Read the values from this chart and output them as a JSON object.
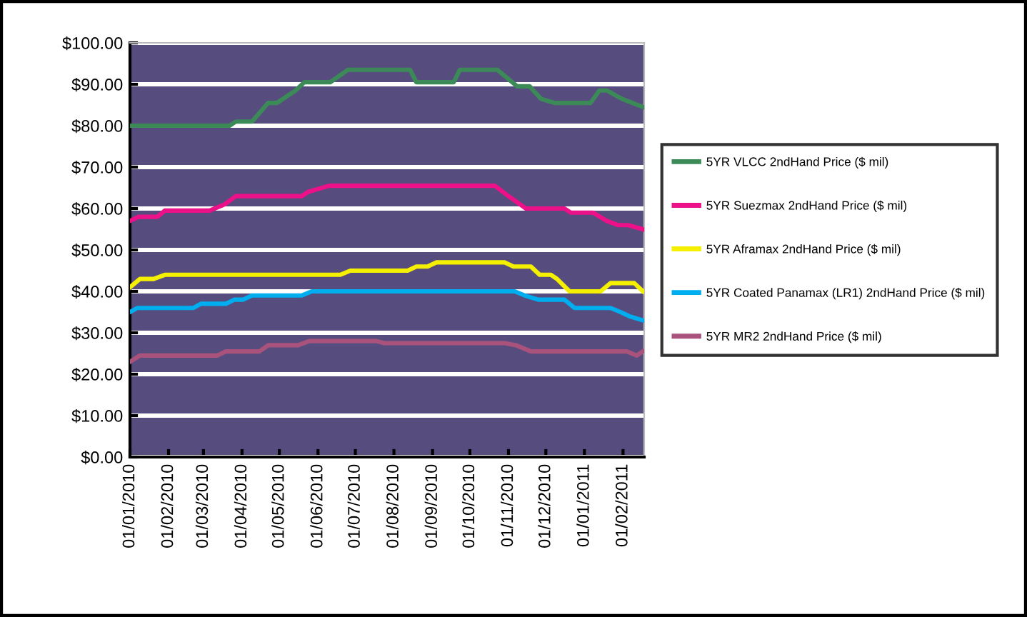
{
  "chart_data": {
    "type": "line",
    "xlim": [
      "2010-01-01",
      "2011-02-18"
    ],
    "xticks": [
      {
        "value": "2010-01-01",
        "label": "01/01/2010"
      },
      {
        "value": "2010-02-01",
        "label": "01/02/2010"
      },
      {
        "value": "2010-03-01",
        "label": "01/03/2010"
      },
      {
        "value": "2010-04-01",
        "label": "01/04/2010"
      },
      {
        "value": "2010-05-01",
        "label": "01/05/2010"
      },
      {
        "value": "2010-06-01",
        "label": "01/06/2010"
      },
      {
        "value": "2010-07-01",
        "label": "01/07/2010"
      },
      {
        "value": "2010-08-01",
        "label": "01/08/2010"
      },
      {
        "value": "2010-09-01",
        "label": "01/09/2010"
      },
      {
        "value": "2010-10-01",
        "label": "01/10/2010"
      },
      {
        "value": "2010-11-01",
        "label": "01/11/2010"
      },
      {
        "value": "2010-12-01",
        "label": "01/12/2010"
      },
      {
        "value": "2011-01-01",
        "label": "01/01/2011"
      },
      {
        "value": "2011-02-01",
        "label": "01/02/2011"
      }
    ],
    "ylim": [
      0,
      100
    ],
    "yticks": [
      {
        "value": 0,
        "label": "$0.00"
      },
      {
        "value": 10,
        "label": "$10.00"
      },
      {
        "value": 20,
        "label": "$20.00"
      },
      {
        "value": 30,
        "label": "$30.00"
      },
      {
        "value": 40,
        "label": "$40.00"
      },
      {
        "value": 50,
        "label": "$50.00"
      },
      {
        "value": 60,
        "label": "$60.00"
      },
      {
        "value": 70,
        "label": "$70.00"
      },
      {
        "value": 80,
        "label": "$80.00"
      },
      {
        "value": 90,
        "label": "$90.00"
      },
      {
        "value": 100,
        "label": "$100.00"
      }
    ],
    "grid": "y",
    "legend": "right",
    "marker": "none",
    "line_style": "solid",
    "series": [
      {
        "name": "5YR VLCC 2ndHand Price ($ mil)",
        "color": "#3b8a58",
        "x": [
          "2010-01-01",
          "2010-03-22",
          "2010-03-27",
          "2010-04-09",
          "2010-04-22",
          "2010-04-29",
          "2010-05-14",
          "2010-05-21",
          "2010-06-11",
          "2010-06-25",
          "2010-08-14",
          "2010-08-19",
          "2010-09-18",
          "2010-09-23",
          "2010-10-23",
          "2010-11-08",
          "2010-11-18",
          "2010-11-27",
          "2010-12-08",
          "2011-01-06",
          "2011-01-13",
          "2011-01-19",
          "2011-01-31",
          "2011-02-17"
        ],
        "values": [
          80,
          80,
          81,
          81,
          85.5,
          85.5,
          88.5,
          90.5,
          90.5,
          93.5,
          93.5,
          90.5,
          90.5,
          93.5,
          93.5,
          89.5,
          89.5,
          86.5,
          85.5,
          85.5,
          88.5,
          88.5,
          86.5,
          84.5
        ]
      },
      {
        "name": "5YR Suezmax 2ndHand Price ($ mil)",
        "color": "#ec1188",
        "x": [
          "2010-01-01",
          "2010-01-08",
          "2010-01-23",
          "2010-01-29",
          "2010-03-06",
          "2010-03-18",
          "2010-03-27",
          "2010-05-19",
          "2010-05-24",
          "2010-06-10",
          "2010-10-21",
          "2010-11-01",
          "2010-11-15",
          "2010-12-16",
          "2010-12-21",
          "2011-01-08",
          "2011-01-19",
          "2011-01-28",
          "2011-02-05",
          "2011-02-17"
        ],
        "values": [
          57,
          58,
          58,
          59.5,
          59.5,
          61,
          63,
          63,
          64,
          65.5,
          65.5,
          63,
          60,
          60,
          59,
          59,
          57,
          56,
          56,
          55
        ]
      },
      {
        "name": "5YR Aframax 2ndHand Price ($ mil)",
        "color": "#f5f000",
        "x": [
          "2010-01-01",
          "2010-01-09",
          "2010-01-20",
          "2010-01-29",
          "2010-06-19",
          "2010-06-27",
          "2010-08-12",
          "2010-08-19",
          "2010-08-28",
          "2010-09-04",
          "2010-10-29",
          "2010-11-05",
          "2010-11-19",
          "2010-11-26",
          "2010-12-05",
          "2010-12-10",
          "2010-12-20",
          "2011-01-14",
          "2011-01-22",
          "2011-02-10",
          "2011-02-17"
        ],
        "values": [
          41,
          43,
          43,
          44,
          44,
          45,
          45,
          46,
          46,
          47,
          47,
          46,
          46,
          44,
          44,
          43,
          40,
          40,
          42,
          42,
          40
        ]
      },
      {
        "name": "5YR Coated Panamax (LR1) 2ndHand Price ($ mil)",
        "color": "#00aeef",
        "x": [
          "2010-01-01",
          "2010-01-07",
          "2010-02-21",
          "2010-02-27",
          "2010-03-19",
          "2010-03-26",
          "2010-04-02",
          "2010-04-09",
          "2010-05-19",
          "2010-05-27",
          "2010-11-06",
          "2010-11-14",
          "2010-11-25",
          "2010-12-16",
          "2010-12-24",
          "2011-01-22",
          "2011-01-30",
          "2011-02-06",
          "2011-02-17"
        ],
        "values": [
          35,
          36,
          36,
          37,
          37,
          38,
          38,
          39,
          39,
          40,
          40,
          39,
          38,
          38,
          36,
          36,
          35,
          34,
          33
        ]
      },
      {
        "name": "5YR MR2 2ndHand Price ($ mil)",
        "color": "#a8527c",
        "x": [
          "2010-01-01",
          "2010-01-09",
          "2010-03-12",
          "2010-03-19",
          "2010-04-15",
          "2010-04-22",
          "2010-05-16",
          "2010-05-25",
          "2010-07-18",
          "2010-07-24",
          "2010-10-29",
          "2010-11-07",
          "2010-11-19",
          "2011-02-04",
          "2011-02-12",
          "2011-02-17"
        ],
        "values": [
          23,
          24.5,
          24.5,
          25.5,
          25.5,
          27,
          27,
          28,
          28,
          27.5,
          27.5,
          27,
          25.5,
          25.5,
          24.5,
          25.5
        ]
      }
    ]
  }
}
